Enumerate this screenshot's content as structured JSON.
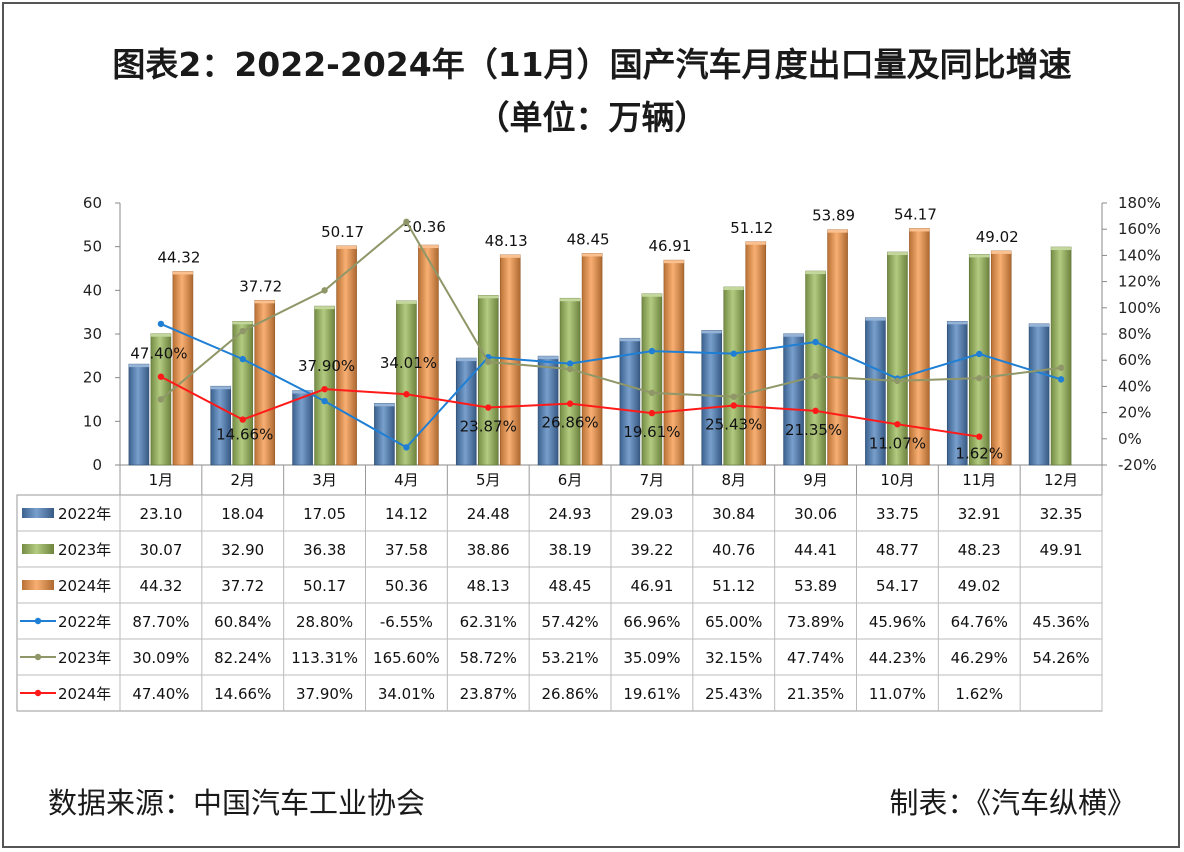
{
  "title_line1": "图表2：2022-2024年（11月）国产汽车月度出口量及同比增速",
  "title_line2": "（单位：万辆）",
  "footer": {
    "source": "数据来源：中国汽车工业协会",
    "maker": "制表：《汽车纵横》"
  },
  "chart_data": {
    "type": "bar",
    "categories": [
      "1月",
      "2月",
      "3月",
      "4月",
      "5月",
      "6月",
      "7月",
      "8月",
      "9月",
      "10月",
      "11月",
      "12月"
    ],
    "y_left": {
      "range": [
        0,
        60
      ],
      "ticks": [
        "0",
        "10",
        "20",
        "30",
        "40",
        "50",
        "60"
      ]
    },
    "y_right": {
      "range": [
        -20,
        180
      ],
      "ticks": [
        "-20%",
        "0%",
        "20%",
        "40%",
        "60%",
        "80%",
        "100%",
        "120%",
        "140%",
        "160%",
        "180%"
      ]
    },
    "bar_series": [
      {
        "name": "2022年",
        "color": "#4f81bd",
        "values": [
          23.1,
          18.04,
          17.05,
          14.12,
          24.48,
          24.93,
          29.03,
          30.84,
          30.06,
          33.75,
          32.91,
          32.35
        ],
        "labels": [
          "23.10",
          "18.04",
          "17.05",
          "14.12",
          "24.48",
          "24.93",
          "29.03",
          "30.84",
          "30.06",
          "33.75",
          "32.91",
          "32.35"
        ]
      },
      {
        "name": "2023年",
        "color": "#9bbb59",
        "values": [
          30.07,
          32.9,
          36.38,
          37.58,
          38.86,
          38.19,
          39.22,
          40.76,
          44.41,
          48.77,
          48.23,
          49.91
        ],
        "labels": [
          "30.07",
          "32.90",
          "36.38",
          "37.58",
          "38.86",
          "38.19",
          "39.22",
          "40.76",
          "44.41",
          "48.77",
          "48.23",
          "49.91"
        ]
      },
      {
        "name": "2024年",
        "color": "#f79646",
        "values": [
          44.32,
          37.72,
          50.17,
          50.36,
          48.13,
          48.45,
          46.91,
          51.12,
          53.89,
          54.17,
          49.02,
          null
        ],
        "labels": [
          "44.32",
          "37.72",
          "50.17",
          "50.36",
          "48.13",
          "48.45",
          "46.91",
          "51.12",
          "53.89",
          "54.17",
          "49.02",
          ""
        ]
      }
    ],
    "line_series": [
      {
        "name": "2022年",
        "color": "#1f7fd4",
        "values": [
          87.7,
          60.84,
          28.8,
          -6.55,
          62.31,
          57.42,
          66.96,
          65.0,
          73.89,
          45.96,
          64.76,
          45.36
        ],
        "labels": [
          "87.70%",
          "60.84%",
          "28.80%",
          "-6.55%",
          "62.31%",
          "57.42%",
          "66.96%",
          "65.00%",
          "73.89%",
          "45.96%",
          "64.76%",
          "45.36%"
        ]
      },
      {
        "name": "2023年",
        "color": "#8f9668",
        "values": [
          30.09,
          82.24,
          113.31,
          165.6,
          58.72,
          53.21,
          35.09,
          32.15,
          47.74,
          44.23,
          46.29,
          54.26
        ],
        "labels": [
          "30.09%",
          "82.24%",
          "113.31%",
          "165.60%",
          "58.72%",
          "53.21%",
          "35.09%",
          "32.15%",
          "47.74%",
          "44.23%",
          "46.29%",
          "54.26%"
        ]
      },
      {
        "name": "2024年",
        "color": "#ff1a1a",
        "values": [
          47.4,
          14.66,
          37.9,
          34.01,
          23.87,
          26.86,
          19.61,
          25.43,
          21.35,
          11.07,
          1.62,
          null
        ],
        "labels": [
          "47.40%",
          "14.66%",
          "37.90%",
          "34.01%",
          "23.87%",
          "26.86%",
          "19.61%",
          "25.43%",
          "21.35%",
          "11.07%",
          "1.62%",
          ""
        ]
      }
    ]
  }
}
